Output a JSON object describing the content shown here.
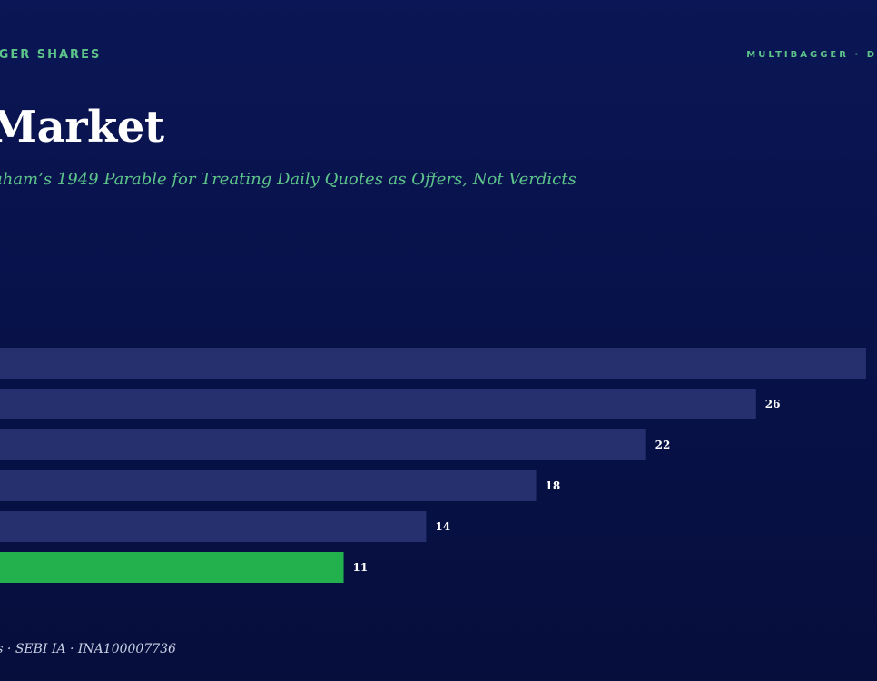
{
  "header": {
    "kicker_left": "GGER SHARES",
    "kicker_right": "MULTIBAGGER · D",
    "title": "Market",
    "subtitle": "aham’s 1949 Parable for Treating Daily Quotes as Offers, Not Verdicts"
  },
  "footer": {
    "text": "es · SEBI IA · INA100007736"
  },
  "colors": {
    "bar_default": "#26306e",
    "bar_highlight": "#22b14c",
    "value_label": "#ffffff",
    "accent": "#5dc48a"
  },
  "chart_data": {
    "type": "bar",
    "orientation": "horizontal",
    "values": [
      30,
      26,
      22,
      18,
      14,
      11
    ],
    "value_labels": [
      "",
      "26",
      "22",
      "18",
      "14",
      "11"
    ],
    "highlight_index": 5,
    "xlim": [
      -1.5,
      30.2
    ]
  }
}
